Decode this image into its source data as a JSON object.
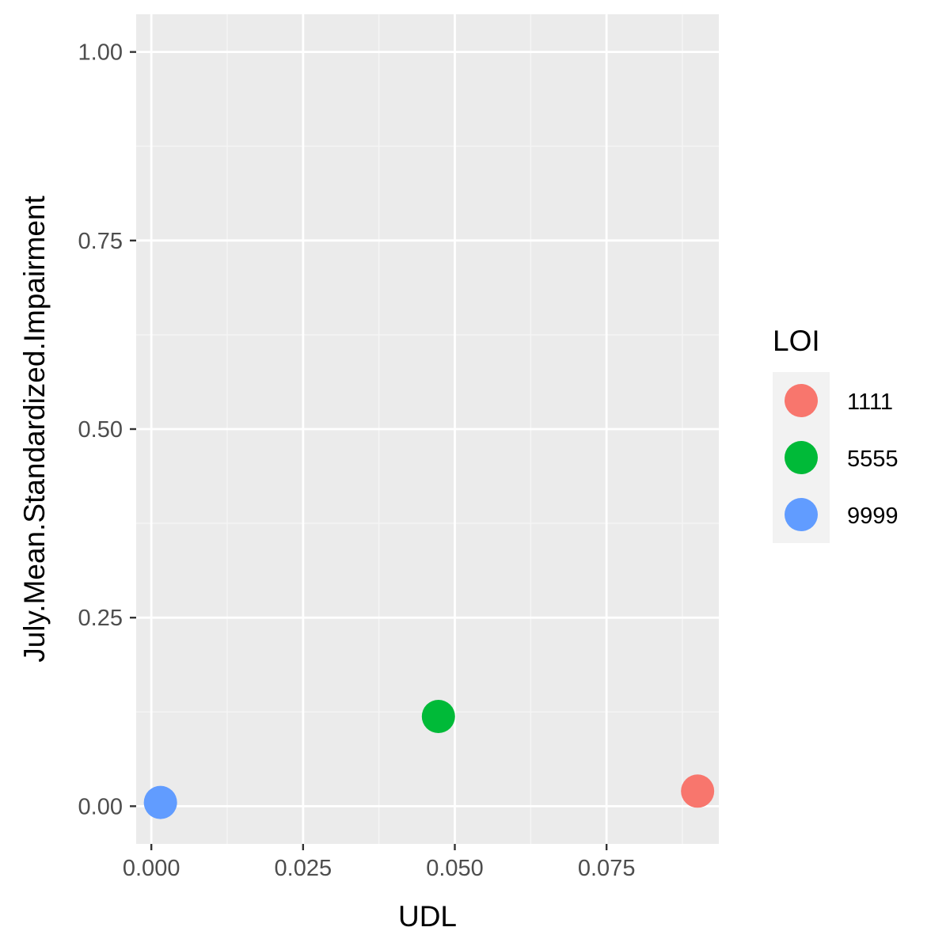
{
  "chart_data": {
    "type": "scatter",
    "xlabel": "UDL",
    "ylabel": "July.Mean.Standardized.Impairment",
    "xlim": [
      -0.0025,
      0.0935
    ],
    "ylim": [
      -0.05,
      1.05
    ],
    "x_ticks": [
      0.0,
      0.025,
      0.05,
      0.075
    ],
    "x_tick_labels": [
      "0.000",
      "0.025",
      "0.050",
      "0.075"
    ],
    "y_ticks": [
      0.0,
      0.25,
      0.5,
      0.75,
      1.0
    ],
    "y_tick_labels": [
      "0.00",
      "0.25",
      "0.50",
      "0.75",
      "1.00"
    ],
    "grid": true,
    "legend": {
      "title": "LOI",
      "placement": "right",
      "entries": [
        {
          "label": "1111",
          "color": "#F8766D"
        },
        {
          "label": "5555",
          "color": "#00BA38"
        },
        {
          "label": "9999",
          "color": "#619CFF"
        }
      ]
    },
    "points": [
      {
        "group": "1111",
        "x": 0.09,
        "y": 0.02,
        "color": "#F8766D"
      },
      {
        "group": "5555",
        "x": 0.0473,
        "y": 0.119,
        "color": "#00BA38"
      },
      {
        "group": "9999",
        "x": 0.0015,
        "y": 0.005,
        "color": "#619CFF"
      }
    ]
  },
  "colors": {
    "panel_background": "#EBEBEB",
    "grid_major": "#FFFFFF",
    "grid_minor": "#F5F5F5",
    "legend_key_background": "#F2F2F2",
    "tick_text": "#4D4D4D",
    "tick_mark": "#333333"
  }
}
